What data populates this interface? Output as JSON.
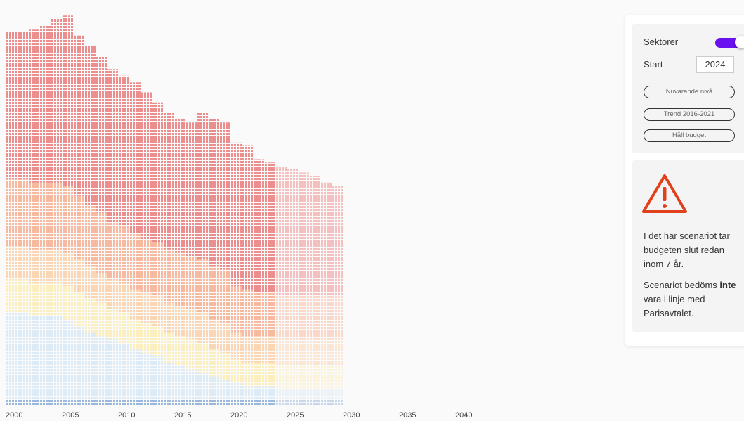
{
  "chart_data": {
    "type": "area",
    "stacked": true,
    "x": [
      2000,
      2001,
      2002,
      2003,
      2004,
      2005,
      2006,
      2007,
      2008,
      2009,
      2010,
      2011,
      2012,
      2013,
      2014,
      2015,
      2016,
      2017,
      2018,
      2019,
      2020,
      2021,
      2022,
      2023,
      2024,
      2025,
      2026,
      2027,
      2028,
      2029
    ],
    "series": [
      {
        "color": "#9db8dd",
        "values": [
          2,
          2,
          2,
          2,
          2,
          2,
          2,
          2,
          2,
          2,
          2,
          2,
          2,
          2,
          2,
          2,
          2,
          2,
          2,
          2,
          2,
          2,
          2,
          2,
          2,
          2,
          2,
          2,
          2,
          2
        ]
      },
      {
        "color": "#dcebf5",
        "values": [
          26,
          26,
          25,
          25,
          25,
          24,
          22,
          20,
          19,
          18,
          17,
          15,
          14,
          13,
          11,
          10,
          9,
          8,
          7,
          6,
          5,
          4,
          4,
          4,
          3,
          3,
          3,
          3,
          3,
          3
        ]
      },
      {
        "color": "#fbefc0",
        "values": [
          10,
          10,
          10,
          10,
          10,
          10,
          10,
          10,
          10,
          9,
          9,
          9,
          9,
          9,
          9,
          9,
          9,
          9,
          8,
          8,
          7,
          7,
          7,
          7,
          7,
          7,
          7,
          7,
          7,
          7
        ]
      },
      {
        "color": "#fbd6b5",
        "values": [
          10,
          10,
          10,
          10,
          10,
          10,
          10,
          10,
          9,
          9,
          9,
          9,
          9,
          9,
          9,
          9,
          9,
          9,
          9,
          9,
          8,
          8,
          8,
          8,
          8,
          8,
          8,
          8,
          8,
          8
        ]
      },
      {
        "color": "#f7b9a0",
        "values": [
          20,
          20,
          20,
          20,
          20,
          20,
          19,
          18,
          18,
          17,
          17,
          17,
          16,
          16,
          16,
          16,
          16,
          16,
          16,
          16,
          14,
          14,
          13,
          13,
          13,
          13,
          13,
          13,
          13,
          13
        ]
      },
      {
        "color": "#ec8e8e",
        "values": [
          44,
          44,
          46,
          47,
          49,
          51,
          48,
          48,
          47,
          46,
          45,
          45,
          44,
          42,
          41,
          40,
          40,
          44,
          44,
          44,
          43,
          43,
          40,
          39,
          39,
          38,
          37,
          36,
          34,
          33
        ]
      }
    ],
    "xlim": [
      2000,
      2040
    ],
    "xticks": [
      2000,
      2005,
      2010,
      2015,
      2020,
      2025,
      2030,
      2035,
      2040
    ],
    "ylim": [
      0,
      120
    ]
  },
  "panel": {
    "toggle_label": "Sektorer",
    "toggle_on": true,
    "start_label": "Start",
    "start": 2024,
    "buttons": [
      "Nuvarande nivå",
      "Trend 2016-2021",
      "Håll budget"
    ],
    "message": "I det här scenariot tar budgeten slut redan inom 7 år.",
    "verdict": {
      "before": "Scenariot bedöms",
      "emphasis": "inte",
      "after": "vara i linje med Parisavtalet."
    }
  }
}
